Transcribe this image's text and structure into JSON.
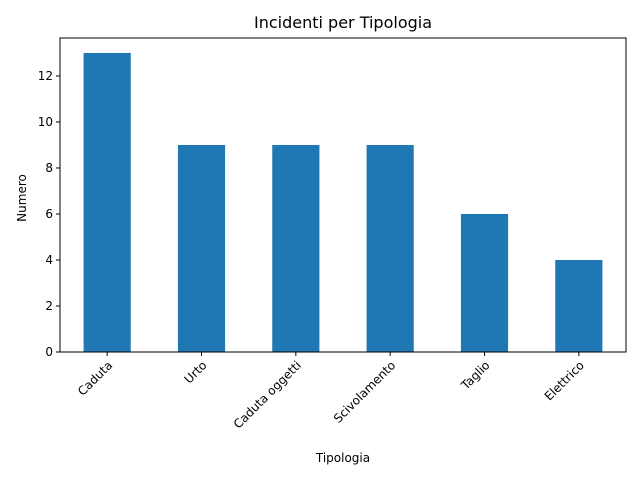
{
  "chart_data": {
    "type": "bar",
    "title": "Incidenti per Tipologia",
    "xlabel": "Tipologia",
    "ylabel": "Numero",
    "categories": [
      "Caduta",
      "Urto",
      "Caduta oggetti",
      "Scivolamento",
      "Taglio",
      "Elettrico"
    ],
    "values": [
      13,
      9,
      9,
      9,
      6,
      4
    ],
    "ylim": [
      0,
      13.65
    ],
    "yticks": [
      0,
      2,
      4,
      6,
      8,
      10,
      12
    ],
    "bar_color": "#1f77b4",
    "grid": false,
    "legend": false
  }
}
